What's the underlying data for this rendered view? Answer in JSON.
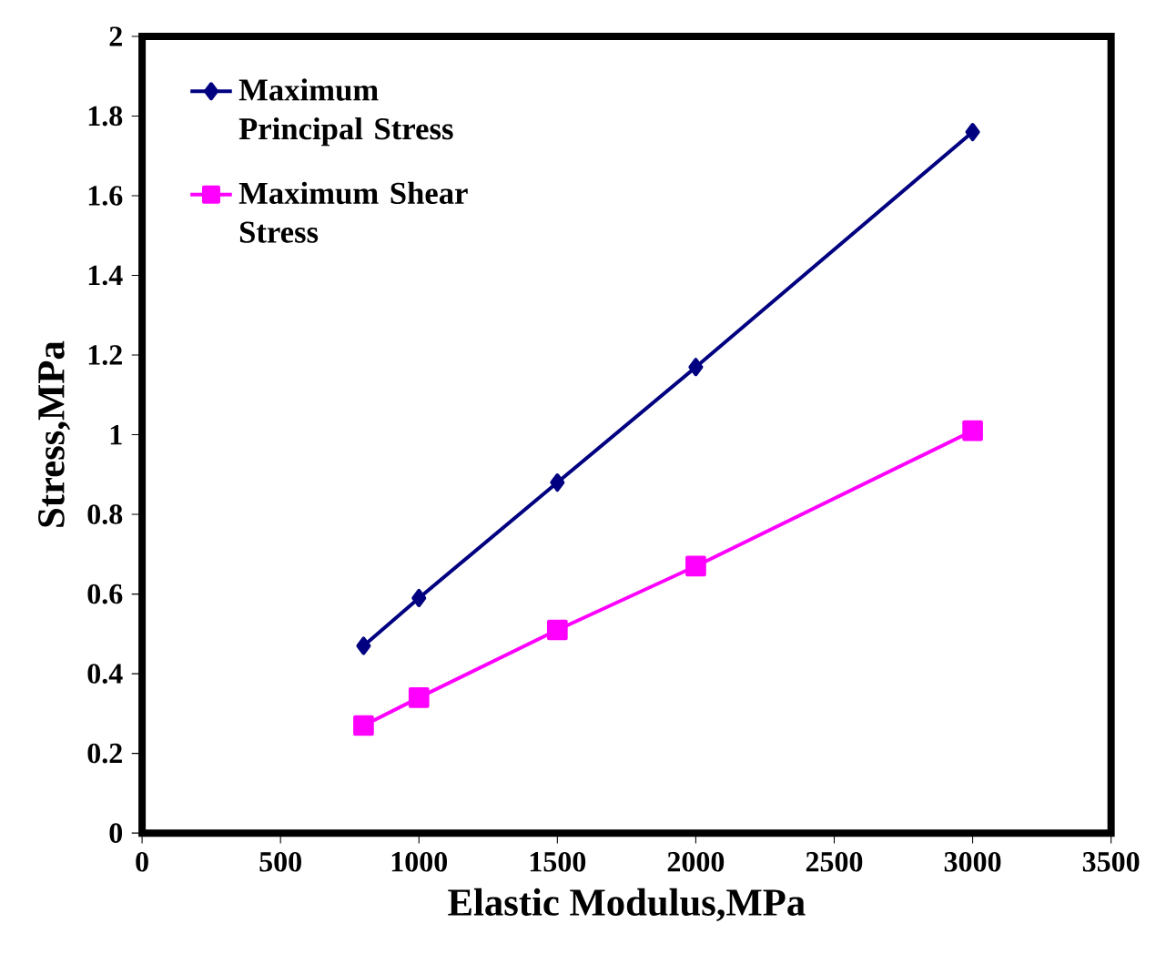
{
  "chart_data": {
    "type": "line",
    "xlabel": "Elastic Modulus,MPa",
    "ylabel": "Stress,MPa",
    "xlim": [
      0,
      3500
    ],
    "xticks": [
      0,
      500,
      1000,
      1500,
      2000,
      2500,
      3000,
      3500
    ],
    "ylim": [
      0,
      2
    ],
    "yticks": [
      0,
      0.2,
      0.4,
      0.6,
      0.8,
      1,
      1.2,
      1.4,
      1.6,
      1.8,
      2
    ],
    "legend": "top left",
    "grid": false,
    "line_style": "solid",
    "series": [
      {
        "name": "Maximum Principal Stress",
        "color": "#000080",
        "marker": "diamond",
        "x": [
          800,
          1000,
          1500,
          2000,
          3000
        ],
        "values": [
          0.47,
          0.59,
          0.88,
          1.17,
          1.76
        ]
      },
      {
        "name": "Maximum Shear Stress",
        "color": "#ff00ff",
        "marker": "square",
        "x": [
          800,
          1000,
          1500,
          2000,
          3000
        ],
        "values": [
          0.27,
          0.34,
          0.51,
          0.67,
          1.01
        ]
      }
    ]
  }
}
